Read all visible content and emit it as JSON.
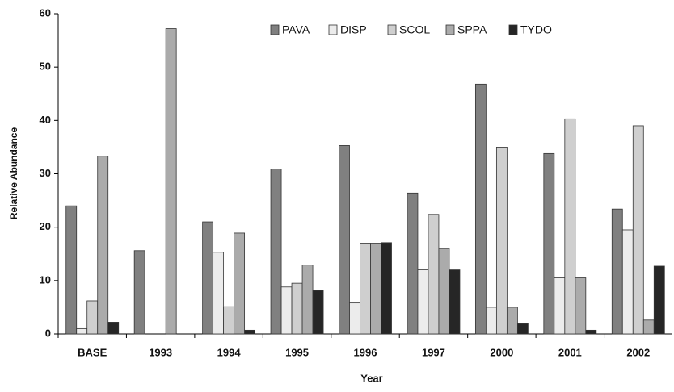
{
  "chart_data": {
    "type": "bar",
    "xlabel": "Year",
    "ylabel": "Relative Abundance",
    "categories": [
      "BASE",
      "1993",
      "1994",
      "1995",
      "1996",
      "1997",
      "2000",
      "2001",
      "2002"
    ],
    "series": [
      {
        "name": "PAVA",
        "color": "#808080",
        "values": [
          24,
          15.6,
          21,
          30.9,
          35.3,
          26.4,
          46.8,
          33.8,
          23.4
        ]
      },
      {
        "name": "DISP",
        "color": "#ececec",
        "values": [
          1,
          0,
          15.3,
          8.8,
          5.8,
          12,
          5,
          10.5,
          19.5
        ]
      },
      {
        "name": "SCOL",
        "color": "#cfcfcf",
        "values": [
          6.2,
          0,
          5.1,
          9.5,
          17,
          22.4,
          35,
          40.3,
          39
        ]
      },
      {
        "name": "SPPA",
        "color": "#ababab",
        "values": [
          33.3,
          57.2,
          18.9,
          12.9,
          17,
          16,
          5,
          10.5,
          2.6
        ]
      },
      {
        "name": "TYDO",
        "color": "#262626",
        "values": [
          2.2,
          0,
          0.7,
          8.1,
          17.1,
          12,
          1.9,
          0.7,
          12.7
        ]
      }
    ],
    "ylim": [
      0,
      60
    ],
    "yticks": [
      0,
      10,
      20,
      30,
      40,
      50,
      60
    ],
    "grid": false,
    "legend": "top"
  }
}
